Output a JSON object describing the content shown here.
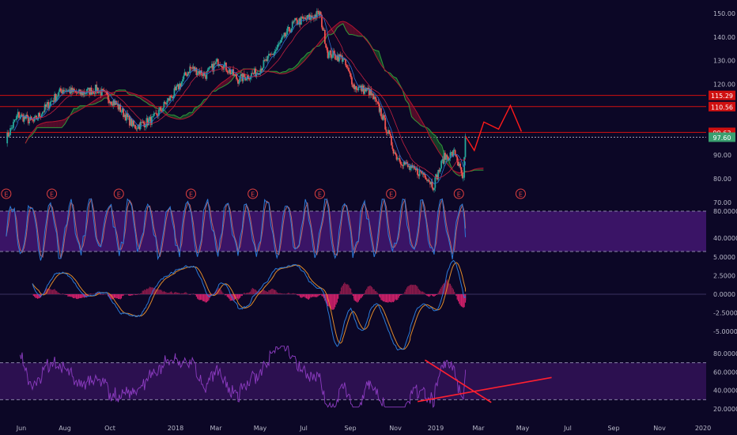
{
  "colors": {
    "background": "#0c0726",
    "axis_text": "#b8b8c8",
    "candle_up": "#26a69a",
    "candle_down": "#ef5350",
    "cloud_green": "#1e6b2c",
    "cloud_red": "#8a0f2e",
    "level_line": "#d01010",
    "projection": "#ff1a1a",
    "stoch_k": "#2a7ad8",
    "stoch_d": "#c06060",
    "stoch_band": "#3a1466",
    "macd_line": "#2a7ad8",
    "macd_signal": "#e08a2a",
    "hist_up": "#8a1a4a",
    "hist_down": "#d0206a",
    "rsi_line": "#8c3cc0",
    "rsi_band": "#2c1050",
    "trend_red": "#ff2030",
    "earnings": "#e04040",
    "price_badge_green": "#3aa070"
  },
  "axes": {
    "price_ticks": [
      "150.00",
      "140.00",
      "130.00",
      "120.00",
      "90.00",
      "80.00",
      "70.00"
    ],
    "stoch_ticks": [
      "80.0000",
      "40.0000"
    ],
    "macd_ticks": [
      "5.0000",
      "2.5000",
      "0.0000",
      "-2.5000",
      "-5.0000"
    ],
    "rsi_ticks": [
      "80.0000",
      "60.0000",
      "40.0000",
      "20.0000"
    ],
    "time_ticks": [
      "Jun",
      "Aug",
      "Oct",
      "2018",
      "Mar",
      "May",
      "Jul",
      "Sep",
      "Nov",
      "2019",
      "Mar",
      "May",
      "Jul",
      "Sep",
      "Nov",
      "2020"
    ]
  },
  "price_labels": [
    {
      "text": "115.29",
      "value": 115.29,
      "kind": "red"
    },
    {
      "text": "110.56",
      "value": 110.56,
      "kind": "red"
    },
    {
      "text": "99.63",
      "value": 99.63,
      "kind": "red"
    },
    {
      "text": "97.60",
      "value": 97.6,
      "kind": "green"
    }
  ],
  "earnings_marker": "E",
  "chart_data": {
    "type": "candlestick",
    "price_ylim": [
      70,
      152
    ],
    "close": [
      {
        "d": "2017-05-25",
        "v": 97
      },
      {
        "d": "2017-06-10",
        "v": 107
      },
      {
        "d": "2017-07-01",
        "v": 104
      },
      {
        "d": "2017-07-20",
        "v": 111
      },
      {
        "d": "2017-08-10",
        "v": 118
      },
      {
        "d": "2017-09-01",
        "v": 116
      },
      {
        "d": "2017-09-25",
        "v": 118
      },
      {
        "d": "2017-10-20",
        "v": 112
      },
      {
        "d": "2017-11-15",
        "v": 102
      },
      {
        "d": "2017-12-10",
        "v": 105
      },
      {
        "d": "2018-01-10",
        "v": 117
      },
      {
        "d": "2018-01-30",
        "v": 127
      },
      {
        "d": "2018-02-20",
        "v": 124
      },
      {
        "d": "2018-03-10",
        "v": 130
      },
      {
        "d": "2018-04-05",
        "v": 122
      },
      {
        "d": "2018-04-30",
        "v": 125
      },
      {
        "d": "2018-05-25",
        "v": 134
      },
      {
        "d": "2018-06-20",
        "v": 146
      },
      {
        "d": "2018-07-10",
        "v": 148
      },
      {
        "d": "2018-07-25",
        "v": 150
      },
      {
        "d": "2018-08-05",
        "v": 133
      },
      {
        "d": "2018-08-25",
        "v": 131
      },
      {
        "d": "2018-09-10",
        "v": 119
      },
      {
        "d": "2018-09-30",
        "v": 117
      },
      {
        "d": "2018-10-15",
        "v": 109
      },
      {
        "d": "2018-11-05",
        "v": 90
      },
      {
        "d": "2018-11-25",
        "v": 84
      },
      {
        "d": "2018-12-15",
        "v": 82
      },
      {
        "d": "2018-12-26",
        "v": 77
      },
      {
        "d": "2019-01-10",
        "v": 89
      },
      {
        "d": "2019-01-25",
        "v": 91
      },
      {
        "d": "2019-02-05",
        "v": 79
      },
      {
        "d": "2019-02-08",
        "v": 98
      }
    ],
    "projection_path": [
      {
        "d": "2019-02-08",
        "v": 98
      },
      {
        "d": "2019-02-20",
        "v": 92
      },
      {
        "d": "2019-03-05",
        "v": 104
      },
      {
        "d": "2019-03-25",
        "v": 101
      },
      {
        "d": "2019-04-10",
        "v": 111
      },
      {
        "d": "2019-04-25",
        "v": 100
      }
    ],
    "horizontal_levels": [
      115.29,
      110.56,
      99.63,
      97.6
    ],
    "earnings_dates": [
      "2017-05-25",
      "2017-07-26",
      "2017-10-25",
      "2018-01-31",
      "2018-04-25",
      "2018-07-25",
      "2018-10-30",
      "2019-01-30",
      "2019-04-24"
    ],
    "stochastic": {
      "upper": 80,
      "lower": 20
    },
    "rsi": {
      "upper": 70,
      "lower": 30
    },
    "rsi_trendlines": [
      [
        {
          "d": "2018-12-15",
          "v": 73
        },
        {
          "d": "2019-03-15",
          "v": 27
        }
      ],
      [
        {
          "d": "2018-12-05",
          "v": 28
        },
        {
          "d": "2019-06-05",
          "v": 54
        }
      ]
    ]
  }
}
